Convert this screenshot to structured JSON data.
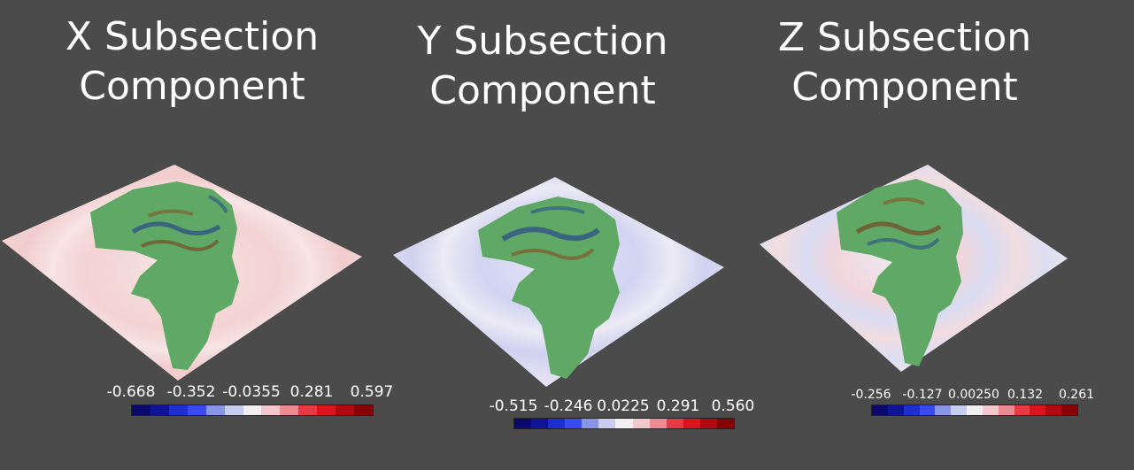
{
  "panels": [
    {
      "title_line1": "X Subsection",
      "title_line2": "Component",
      "colorbar_ticks": [
        "-0.668",
        "-0.352",
        "-0.0355",
        "0.281",
        "0.597"
      ],
      "colorbar_colors": [
        "#0a0a6e",
        "#0f1496",
        "#1e2fd2",
        "#3a4af0",
        "#8a94e6",
        "#c8cdef",
        "#f2eef2",
        "#f3c8cc",
        "#ee8a93",
        "#e83a44",
        "#d9141c",
        "#b00a10",
        "#870205"
      ]
    },
    {
      "title_line1": "Y Subsection",
      "title_line2": "Component",
      "colorbar_ticks": [
        "-0.515",
        "-0.246",
        "0.0225",
        "0.291",
        "0.560"
      ],
      "colorbar_colors": [
        "#0a0a6e",
        "#0f1496",
        "#1e2fd2",
        "#3a4af0",
        "#8a94e6",
        "#c8cdef",
        "#f2eef2",
        "#f3c8cc",
        "#ee8a93",
        "#e83a44",
        "#d9141c",
        "#b00a10",
        "#870205"
      ]
    },
    {
      "title_line1": "Z Subsection",
      "title_line2": "Component",
      "colorbar_ticks": [
        "-0.256",
        "-0.127",
        "0.00250",
        "0.132",
        "0.261"
      ],
      "colorbar_colors": [
        "#0a0a6e",
        "#0f1496",
        "#1e2fd2",
        "#3a4af0",
        "#8a94e6",
        "#c8cdef",
        "#f2eef2",
        "#f3c8cc",
        "#ee8a93",
        "#e83a44",
        "#d9141c",
        "#b00a10",
        "#870205"
      ]
    }
  ],
  "colors": {
    "background": "#4b4b4b",
    "land_green": "#5fa865",
    "plane_x": "#f3d7d7",
    "plane_y": "#dcdcf2",
    "plane_z": "#e6e4ec"
  }
}
